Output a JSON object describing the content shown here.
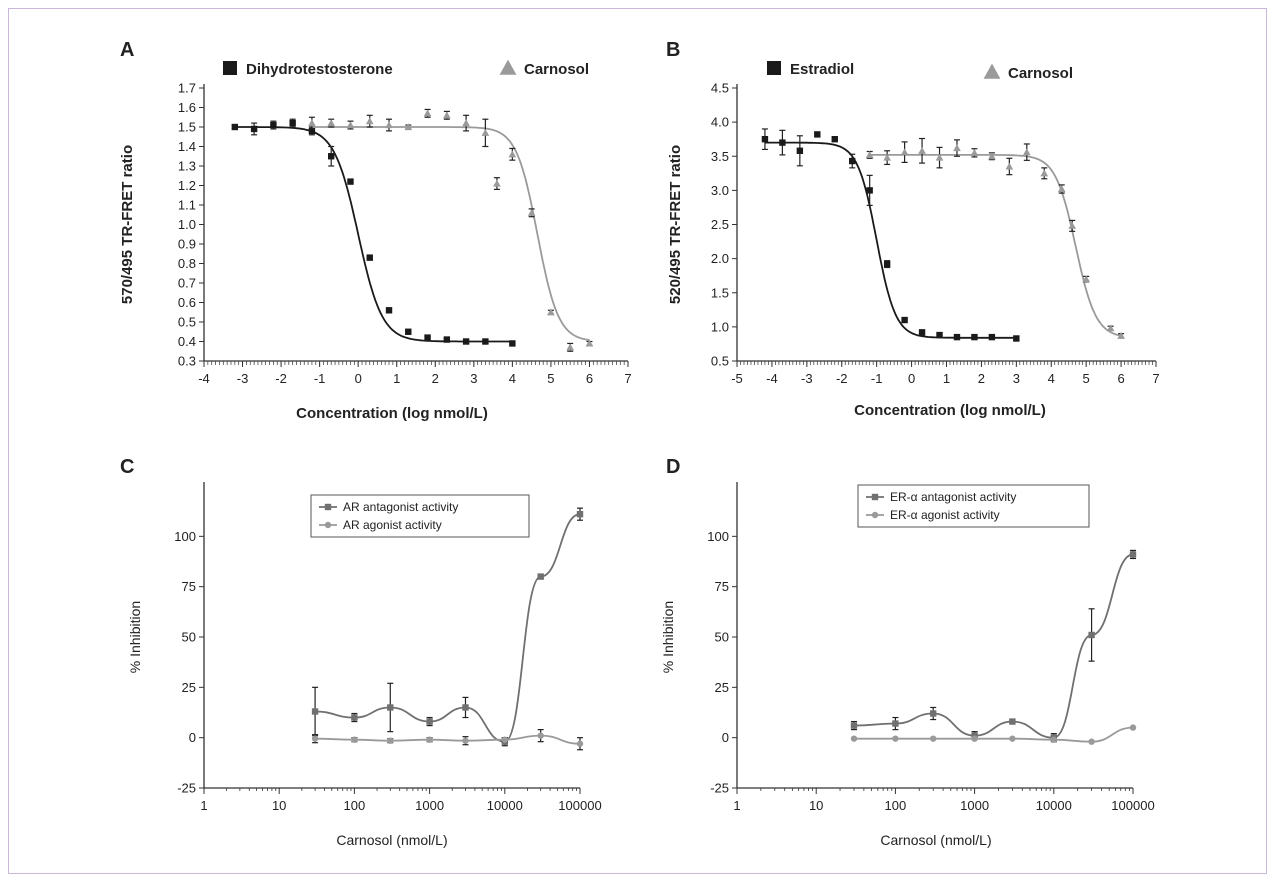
{
  "chart_data": [
    {
      "panel": "A",
      "type": "scatter",
      "xlabel": "Concentration (log nmol/L)",
      "ylabel": "570/495 TR-FRET ratio",
      "xlim": [
        -4,
        7
      ],
      "ylim": [
        0.3,
        1.7
      ],
      "xticks": [
        -4,
        -3,
        -2,
        -1,
        0,
        1,
        2,
        3,
        4,
        5,
        6,
        7
      ],
      "yticks": [
        0.3,
        0.4,
        0.5,
        0.6,
        0.7,
        0.8,
        0.9,
        1.0,
        1.1,
        1.2,
        1.3,
        1.4,
        1.5,
        1.6,
        1.7
      ],
      "legend_position": "top",
      "series": [
        {
          "name": "Dihydrotestosterone",
          "color": "#1a1a1a",
          "marker": "square",
          "x": [
            -3.2,
            -2.7,
            -2.2,
            -1.7,
            -1.2,
            -0.7,
            -0.2,
            0.3,
            0.8,
            1.3,
            1.8,
            2.3,
            2.8,
            3.3,
            4.0
          ],
          "y": [
            1.5,
            1.49,
            1.51,
            1.52,
            1.48,
            1.35,
            1.22,
            0.83,
            0.56,
            0.45,
            0.42,
            0.41,
            0.4,
            0.4,
            0.39
          ],
          "err": [
            0.01,
            0.03,
            0.02,
            0.02,
            0.02,
            0.05,
            0.01,
            0.01,
            0.01,
            0.01,
            0.005,
            0.005,
            0.005,
            0.005,
            0.005
          ],
          "fit": {
            "top": 1.5,
            "bottom": 0.4,
            "ic50": 0.0,
            "hill": 1.4,
            "xmin": -3.2,
            "xmax": 4.0
          }
        },
        {
          "name": "Carnosol",
          "color": "#9a9a9a",
          "marker": "triangle",
          "x": [
            -1.2,
            -0.7,
            -0.2,
            0.3,
            0.8,
            1.3,
            1.8,
            2.3,
            2.8,
            3.3,
            3.6,
            4.0,
            4.5,
            5.0,
            5.5,
            6.0
          ],
          "y": [
            1.52,
            1.52,
            1.51,
            1.53,
            1.51,
            1.5,
            1.57,
            1.56,
            1.52,
            1.47,
            1.21,
            1.36,
            1.06,
            0.55,
            0.37,
            0.39
          ],
          "err": [
            0.03,
            0.02,
            0.02,
            0.03,
            0.03,
            0.01,
            0.02,
            0.02,
            0.04,
            0.07,
            0.03,
            0.03,
            0.02,
            0.01,
            0.02,
            0.01
          ],
          "fit": {
            "top": 1.5,
            "bottom": 0.4,
            "ic50": 4.65,
            "hill": 1.6,
            "xmin": -1.2,
            "xmax": 6.0
          }
        }
      ]
    },
    {
      "panel": "B",
      "type": "scatter",
      "xlabel": "Concentration (log nmol/L)",
      "ylabel": "520/495 TR-FRET ratio",
      "xlim": [
        -5,
        7
      ],
      "ylim": [
        0.5,
        4.5
      ],
      "xticks": [
        -5,
        -4,
        -3,
        -2,
        -1,
        0,
        1,
        2,
        3,
        4,
        5,
        6,
        7
      ],
      "yticks": [
        0.5,
        1.0,
        1.5,
        2.0,
        2.5,
        3.0,
        3.5,
        4.0,
        4.5
      ],
      "legend_position": "top",
      "series": [
        {
          "name": "Estradiol",
          "color": "#1a1a1a",
          "marker": "square",
          "x": [
            -4.2,
            -3.7,
            -3.2,
            -2.7,
            -2.2,
            -1.7,
            -1.2,
            -0.7,
            -0.2,
            0.3,
            0.8,
            1.3,
            1.8,
            2.3,
            3.0
          ],
          "y": [
            3.75,
            3.7,
            3.58,
            3.82,
            3.75,
            3.43,
            3.0,
            1.92,
            1.1,
            0.92,
            0.88,
            0.85,
            0.85,
            0.85,
            0.83
          ],
          "err": [
            0.15,
            0.18,
            0.22,
            0.03,
            0.03,
            0.1,
            0.22,
            0.05,
            0.03,
            0.02,
            0.02,
            0.02,
            0.02,
            0.02,
            0.02
          ],
          "fit": {
            "top": 3.7,
            "bottom": 0.84,
            "ic50": -1.0,
            "hill": 1.6,
            "xmin": -4.2,
            "xmax": 3.0
          }
        },
        {
          "name": "Carnosol",
          "color": "#9a9a9a",
          "marker": "triangle",
          "x": [
            -1.2,
            -0.7,
            -0.2,
            0.3,
            0.8,
            1.3,
            1.8,
            2.3,
            2.8,
            3.3,
            3.8,
            4.3,
            4.6,
            5.0,
            5.7,
            6.0
          ],
          "y": [
            3.52,
            3.48,
            3.56,
            3.58,
            3.48,
            3.62,
            3.55,
            3.5,
            3.35,
            3.56,
            3.25,
            3.02,
            2.48,
            1.7,
            0.98,
            0.87
          ],
          "err": [
            0.05,
            0.1,
            0.15,
            0.18,
            0.15,
            0.12,
            0.06,
            0.05,
            0.12,
            0.12,
            0.08,
            0.06,
            0.08,
            0.04,
            0.03,
            0.03
          ],
          "fit": {
            "top": 3.52,
            "bottom": 0.84,
            "ic50": 4.7,
            "hill": 1.5,
            "xmin": -1.2,
            "xmax": 6.0
          }
        }
      ]
    },
    {
      "panel": "C",
      "type": "line",
      "xlabel": "Carnosol (nmol/L)",
      "ylabel": "% Inhibition",
      "xscale": "log",
      "xlim": [
        1,
        100000
      ],
      "ylim": [
        -25,
        125
      ],
      "xticks": [
        1,
        10,
        100,
        1000,
        10000,
        100000
      ],
      "xticklabels": [
        "1",
        "10",
        "100",
        "1000",
        "10000",
        "100000"
      ],
      "yticks": [
        -25,
        0,
        25,
        50,
        75,
        100
      ],
      "legend_position": "top-right",
      "series": [
        {
          "name": "AR antagonist activity",
          "color": "#707070",
          "marker": "square",
          "x": [
            30,
            100,
            300,
            1000,
            3000,
            10000,
            30000,
            100000
          ],
          "y": [
            13,
            10,
            15,
            8,
            15,
            -2,
            80,
            111
          ],
          "err": [
            12,
            2,
            12,
            2,
            5,
            2,
            1,
            3
          ]
        },
        {
          "name": "AR agonist activity",
          "color": "#9a9a9a",
          "marker": "circle",
          "x": [
            30,
            100,
            300,
            1000,
            3000,
            10000,
            30000,
            100000
          ],
          "y": [
            -0.5,
            -1,
            -1.5,
            -1,
            -1.5,
            -1,
            1,
            -3
          ],
          "err": [
            2,
            1,
            1,
            1,
            2,
            1,
            3,
            3
          ]
        }
      ]
    },
    {
      "panel": "D",
      "type": "line",
      "xlabel": "Carnosol (nmol/L)",
      "ylabel": "% Inhibition",
      "xscale": "log",
      "xlim": [
        1,
        100000
      ],
      "ylim": [
        -25,
        125
      ],
      "xticks": [
        1,
        10,
        100,
        1000,
        10000,
        100000
      ],
      "xticklabels": [
        "1",
        "10",
        "100",
        "1000",
        "10000",
        "100000"
      ],
      "yticks": [
        -25,
        0,
        25,
        50,
        75,
        100
      ],
      "legend_position": "top-center",
      "series": [
        {
          "name": "ER-α antagonist activity",
          "color": "#707070",
          "marker": "square",
          "x": [
            30,
            100,
            300,
            1000,
            3000,
            10000,
            30000,
            100000
          ],
          "y": [
            6,
            7,
            12,
            1,
            8,
            0,
            51,
            91
          ],
          "err": [
            2,
            3,
            3,
            2,
            1,
            2,
            13,
            2
          ]
        },
        {
          "name": "ER-α agonist activity",
          "color": "#9a9a9a",
          "marker": "circle",
          "x": [
            30,
            100,
            300,
            1000,
            3000,
            10000,
            30000,
            100000
          ],
          "y": [
            -0.5,
            -0.5,
            -0.5,
            -0.5,
            -0.5,
            -1,
            -2,
            5
          ],
          "err": [
            0,
            0,
            0,
            0,
            0,
            0,
            0,
            0
          ]
        }
      ]
    }
  ]
}
